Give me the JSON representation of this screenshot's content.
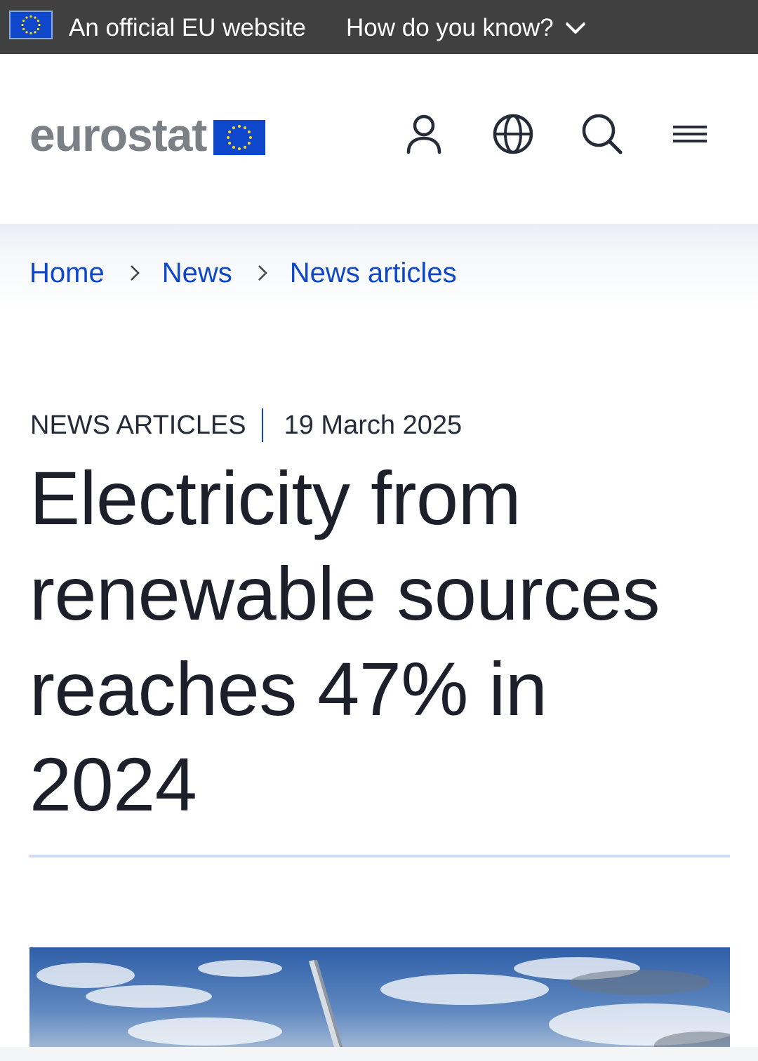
{
  "eu_banner": {
    "text": "An official EU website",
    "link_label": "How do you know?"
  },
  "header": {
    "logo_text": "eurostat",
    "icons": [
      "user-icon",
      "globe-icon",
      "search-icon",
      "menu-icon"
    ]
  },
  "breadcrumb": {
    "items": [
      {
        "label": "Home"
      },
      {
        "label": "News"
      },
      {
        "label": "News articles"
      }
    ]
  },
  "article": {
    "category": "NEWS ARTICLES",
    "date": "19 March 2025",
    "title": "Electricity from renewable sources reaches 47% in 2024"
  },
  "colors": {
    "banner_bg": "#404040",
    "eu_blue": "#0e47cb",
    "eu_star": "#ffd617",
    "logo_grey": "#7b7f86",
    "title_text": "#1d1f2a"
  }
}
